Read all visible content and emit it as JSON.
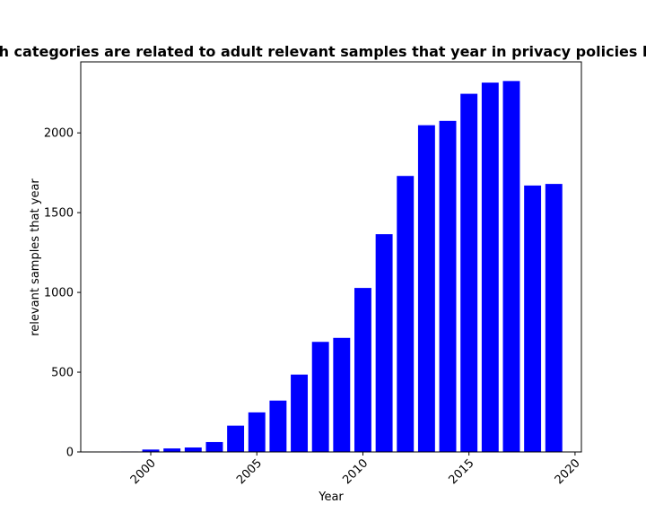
{
  "chart_data": {
    "type": "bar",
    "title": "Which categories are related to adult relevant samples that year in privacy policies by year",
    "xlabel": "Year",
    "ylabel": "relevant samples that year",
    "x": [
      1999,
      2000,
      2001,
      2002,
      2003,
      2004,
      2005,
      2006,
      2007,
      2008,
      2009,
      2010,
      2011,
      2012,
      2013,
      2014,
      2015,
      2016,
      2017,
      2018,
      2019
    ],
    "values": [
      3,
      15,
      22,
      28,
      62,
      165,
      248,
      322,
      485,
      690,
      715,
      1028,
      1365,
      1730,
      2048,
      2075,
      2245,
      2315,
      2325,
      1670,
      1680
    ],
    "xlim": [
      1996.7,
      2020.3
    ],
    "ylim": [
      0,
      2445
    ],
    "xticks": [
      "2000",
      "2005",
      "2010",
      "2015",
      "2020"
    ],
    "yticks": [
      "0",
      "500",
      "1000",
      "1500",
      "2000"
    ],
    "bar_color": "#0000ff",
    "grid": false,
    "legend": "none"
  }
}
